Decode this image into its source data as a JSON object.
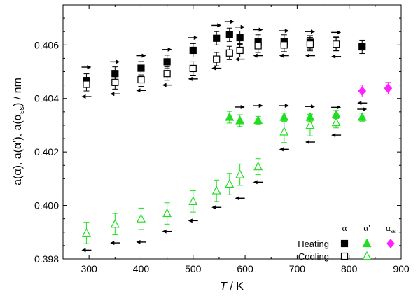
{
  "chart_data": {
    "type": "scatter",
    "xlabel": {
      "italic": "T",
      "rest": " / K"
    },
    "ylabel": {
      "text": "a(α), a(α'), a(α",
      "sub": "ss",
      "end": ") / nm"
    },
    "xlim": [
      250,
      900
    ],
    "ylim": [
      0.398,
      0.4075
    ],
    "xticks": [
      300,
      400,
      500,
      600,
      700,
      800,
      900
    ],
    "xtick_labels": [
      "300",
      "400",
      "500",
      "600",
      "700",
      "800",
      "900"
    ],
    "yticks": [
      0.398,
      0.4,
      0.402,
      0.404,
      0.406
    ],
    "ytick_labels": [
      "0.398",
      "0.400",
      "0.402",
      "0.404",
      "0.406"
    ],
    "grid": false,
    "colors": {
      "alpha": "#000000",
      "alpha_prime": "#22dd22",
      "alpha_ss": "#ff22ff"
    },
    "series": [
      {
        "key": "alpha_heating",
        "phase": "α",
        "mode": "Heating",
        "marker": "square",
        "filled": true,
        "color": "#000000",
        "points": [
          {
            "x": 295,
            "y": 0.40467,
            "err": 0.00025
          },
          {
            "x": 350,
            "y": 0.40493,
            "err": 0.00025
          },
          {
            "x": 400,
            "y": 0.40513,
            "err": 0.00025
          },
          {
            "x": 450,
            "y": 0.40537,
            "err": 0.00025
          },
          {
            "x": 500,
            "y": 0.4058,
            "err": 0.00025
          },
          {
            "x": 545,
            "y": 0.40625,
            "err": 0.00025
          },
          {
            "x": 570,
            "y": 0.40638,
            "err": 0.00025
          },
          {
            "x": 590,
            "y": 0.40627,
            "err": 0.00025
          },
          {
            "x": 625,
            "y": 0.40613,
            "err": 0.00025
          },
          {
            "x": 675,
            "y": 0.40613,
            "err": 0.00025
          },
          {
            "x": 725,
            "y": 0.4061,
            "err": 0.00025
          },
          {
            "x": 775,
            "y": 0.40605,
            "err": 0.00025
          },
          {
            "x": 825,
            "y": 0.40593,
            "err": 0.00025
          }
        ]
      },
      {
        "key": "alpha_cooling",
        "phase": "α",
        "mode": "Cooling",
        "marker": "square",
        "filled": false,
        "color": "#000000",
        "points": [
          {
            "x": 295,
            "y": 0.40453,
            "err": 0.00025
          },
          {
            "x": 350,
            "y": 0.4046,
            "err": 0.00025
          },
          {
            "x": 400,
            "y": 0.4047,
            "err": 0.00025
          },
          {
            "x": 450,
            "y": 0.40493,
            "err": 0.00025
          },
          {
            "x": 500,
            "y": 0.40512,
            "err": 0.00025
          },
          {
            "x": 545,
            "y": 0.40547,
            "err": 0.00025
          },
          {
            "x": 570,
            "y": 0.4057,
            "err": 0.00025
          },
          {
            "x": 590,
            "y": 0.4058,
            "err": 0.00025
          },
          {
            "x": 625,
            "y": 0.40597,
            "err": 0.00025
          },
          {
            "x": 675,
            "y": 0.406,
            "err": 0.00025
          },
          {
            "x": 725,
            "y": 0.40603,
            "err": 0.00025
          },
          {
            "x": 775,
            "y": 0.40603,
            "err": 0.00025
          }
        ]
      },
      {
        "key": "alphap_heating",
        "phase": "α'",
        "mode": "Heating",
        "marker": "triangle",
        "filled": true,
        "color": "#22dd22",
        "points": [
          {
            "x": 570,
            "y": 0.4033,
            "err": 0.00022
          },
          {
            "x": 590,
            "y": 0.40317,
            "err": 0.00022
          },
          {
            "x": 625,
            "y": 0.40318,
            "err": 0.00015
          },
          {
            "x": 675,
            "y": 0.4033,
            "err": 0.00015
          },
          {
            "x": 725,
            "y": 0.4033,
            "err": 0.00015
          },
          {
            "x": 775,
            "y": 0.4034,
            "err": 0.00015
          },
          {
            "x": 825,
            "y": 0.4033,
            "err": 0.00015
          }
        ]
      },
      {
        "key": "alphap_cooling",
        "phase": "α'",
        "mode": "Cooling",
        "marker": "triangle",
        "filled": false,
        "color": "#22dd22",
        "points": [
          {
            "x": 295,
            "y": 0.39897,
            "err": 0.0004
          },
          {
            "x": 350,
            "y": 0.3993,
            "err": 0.0004
          },
          {
            "x": 400,
            "y": 0.3995,
            "err": 0.0004
          },
          {
            "x": 450,
            "y": 0.3997,
            "err": 0.0004
          },
          {
            "x": 500,
            "y": 0.40015,
            "err": 0.0004
          },
          {
            "x": 545,
            "y": 0.40055,
            "err": 0.0004
          },
          {
            "x": 570,
            "y": 0.4008,
            "err": 0.0004
          },
          {
            "x": 590,
            "y": 0.40115,
            "err": 0.0004
          },
          {
            "x": 625,
            "y": 0.40145,
            "err": 0.0003
          },
          {
            "x": 675,
            "y": 0.40275,
            "err": 0.0004
          },
          {
            "x": 725,
            "y": 0.403,
            "err": 0.0004
          },
          {
            "x": 775,
            "y": 0.4031,
            "err": 0.0002
          }
        ]
      },
      {
        "key": "alphass_heating",
        "phase": "αss",
        "mode": "Heating",
        "marker": "diamond",
        "filled": true,
        "color": "#ff22ff",
        "points": [
          {
            "x": 825,
            "y": 0.40428,
            "err": 0.00022
          },
          {
            "x": 875,
            "y": 0.40438,
            "err": 0.00022
          }
        ]
      }
    ],
    "arrows": [
      {
        "x": 295,
        "y": 0.40517,
        "dir": "right"
      },
      {
        "x": 295,
        "y": 0.40407,
        "dir": "left"
      },
      {
        "x": 350,
        "y": 0.40537,
        "dir": "right"
      },
      {
        "x": 350,
        "y": 0.40417,
        "dir": "left"
      },
      {
        "x": 400,
        "y": 0.4056,
        "dir": "right"
      },
      {
        "x": 400,
        "y": 0.4043,
        "dir": "left"
      },
      {
        "x": 450,
        "y": 0.40583,
        "dir": "right"
      },
      {
        "x": 450,
        "y": 0.4045,
        "dir": "left"
      },
      {
        "x": 500,
        "y": 0.40627,
        "dir": "right"
      },
      {
        "x": 500,
        "y": 0.40473,
        "dir": "left"
      },
      {
        "x": 545,
        "y": 0.40673,
        "dir": "right"
      },
      {
        "x": 545,
        "y": 0.40513,
        "dir": "left"
      },
      {
        "x": 570,
        "y": 0.40687,
        "dir": "right"
      },
      {
        "x": 590,
        "y": 0.40547,
        "dir": "left"
      },
      {
        "x": 590,
        "y": 0.40667,
        "dir": "right"
      },
      {
        "x": 625,
        "y": 0.4056,
        "dir": "left"
      },
      {
        "x": 625,
        "y": 0.40657,
        "dir": "right"
      },
      {
        "x": 675,
        "y": 0.4056,
        "dir": "left"
      },
      {
        "x": 675,
        "y": 0.40653,
        "dir": "right"
      },
      {
        "x": 725,
        "y": 0.4056,
        "dir": "left"
      },
      {
        "x": 725,
        "y": 0.4065,
        "dir": "right"
      },
      {
        "x": 775,
        "y": 0.40557,
        "dir": "left"
      },
      {
        "x": 775,
        "y": 0.40647,
        "dir": "right"
      },
      {
        "x": 825,
        "y": 0.40383,
        "dir": "left"
      },
      {
        "x": 825,
        "y": 0.4036,
        "dir": "right"
      },
      {
        "x": 590,
        "y": 0.40368,
        "dir": "right"
      },
      {
        "x": 625,
        "y": 0.40373,
        "dir": "right"
      },
      {
        "x": 675,
        "y": 0.40373,
        "dir": "right"
      },
      {
        "x": 725,
        "y": 0.4037,
        "dir": "right"
      },
      {
        "x": 775,
        "y": 0.40367,
        "dir": "right"
      },
      {
        "x": 675,
        "y": 0.4021,
        "dir": "left"
      },
      {
        "x": 725,
        "y": 0.40237,
        "dir": "left"
      },
      {
        "x": 775,
        "y": 0.40263,
        "dir": "left"
      },
      {
        "x": 625,
        "y": 0.40087,
        "dir": "left"
      },
      {
        "x": 590,
        "y": 0.40027,
        "dir": "left"
      },
      {
        "x": 545,
        "y": 0.39993,
        "dir": "left"
      },
      {
        "x": 500,
        "y": 0.39943,
        "dir": "left"
      },
      {
        "x": 450,
        "y": 0.39903,
        "dir": "left"
      },
      {
        "x": 400,
        "y": 0.39863,
        "dir": "left"
      },
      {
        "x": 350,
        "y": 0.3986,
        "dir": "left"
      },
      {
        "x": 295,
        "y": 0.39833,
        "dir": "left"
      }
    ],
    "legend": {
      "placement": "bottom-right",
      "columns": [
        {
          "label": "α"
        },
        {
          "label": "α'"
        },
        {
          "label": "α",
          "sub": "ss"
        }
      ],
      "rows": [
        {
          "label": "Heating",
          "entries": [
            "alpha_heating",
            "alphap_heating",
            "alphass_heating"
          ]
        },
        {
          "label": "Cooling",
          "entries": [
            "alpha_cooling",
            "alphap_cooling",
            ""
          ]
        }
      ]
    }
  }
}
